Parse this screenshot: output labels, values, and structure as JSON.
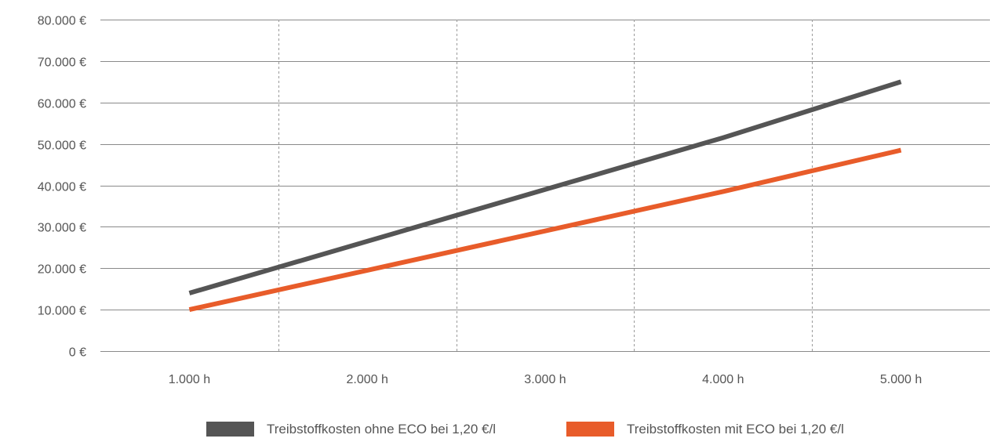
{
  "chart_data": {
    "type": "line",
    "x": [
      "1.000 h",
      "2.000 h",
      "3.000 h",
      "4.000 h",
      "5.000 h"
    ],
    "series": [
      {
        "name": "Treibstoffkosten ohne ECO bei 1,20 €/l",
        "values": [
          14000,
          26500,
          39000,
          51500,
          65000
        ],
        "color": "#555555"
      },
      {
        "name": "Treibstoffkosten mit ECO bei 1,20 €/l",
        "values": [
          10000,
          19500,
          29000,
          38500,
          48500
        ],
        "color": "#e85c2a"
      }
    ],
    "y_ticks": [
      "0 €",
      "10.000 €",
      "20.000 €",
      "30.000 €",
      "40.000 €",
      "50.000 €",
      "60.000 €",
      "70.000 €",
      "80.000 €"
    ],
    "ylim": [
      0,
      80000
    ],
    "grid": true,
    "legend_position": "bottom"
  }
}
